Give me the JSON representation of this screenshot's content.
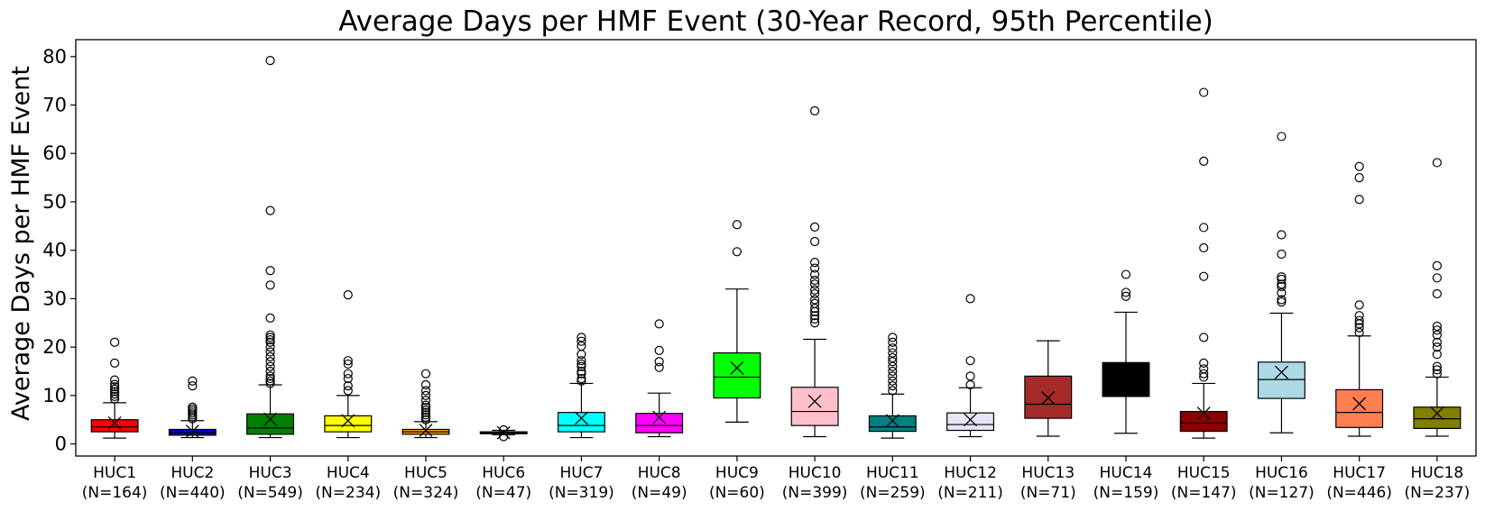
{
  "chart_data": {
    "type": "box",
    "title": "Average Days per HMF Event (30-Year Record, 95th Percentile)",
    "xlabel": "",
    "ylabel": "Average Days per HMF Event",
    "ylim": [
      -2.5,
      83.5
    ],
    "yticks": [
      0,
      10,
      20,
      30,
      40,
      50,
      60,
      70,
      80
    ],
    "grid": false,
    "legend": "none",
    "categories": [
      {
        "name": "HUC1",
        "n_label": "(N=164)",
        "color": "#ff0000",
        "min": 1.2,
        "q1": 2.5,
        "median": 3.5,
        "q3": 5.0,
        "max": 8.5,
        "mean": 4.3,
        "outliers": [
          9.3,
          9.8,
          10.3,
          10.8,
          11.3,
          11.8,
          12.3,
          13.2,
          16.7,
          21.0
        ]
      },
      {
        "name": "HUC2",
        "n_label": "(N=440)",
        "color": "#0000cd",
        "min": 1.3,
        "q1": 1.8,
        "median": 2.3,
        "q3": 3.0,
        "max": 4.8,
        "mean": 2.6,
        "outliers": [
          5.2,
          5.6,
          6.0,
          6.4,
          6.8,
          7.2,
          7.6,
          12.0,
          13.0
        ]
      },
      {
        "name": "HUC3",
        "n_label": "(N=549)",
        "color": "#008000",
        "min": 1.3,
        "q1": 2.0,
        "median": 3.3,
        "q3": 6.2,
        "max": 12.2,
        "mean": 5.1,
        "outliers": [
          12.5,
          13.0,
          13.5,
          14.0,
          15.0,
          16.0,
          17.0,
          18.0,
          19.0,
          20.0,
          21.0,
          21.5,
          22.0,
          22.5,
          26.0,
          32.8,
          35.8,
          48.2,
          79.2
        ]
      },
      {
        "name": "HUC4",
        "n_label": "(N=234)",
        "color": "#ffff00",
        "min": 1.3,
        "q1": 2.5,
        "median": 3.8,
        "q3": 5.8,
        "max": 10.0,
        "mean": 4.8,
        "outliers": [
          11.0,
          12.0,
          13.5,
          14.5,
          16.5,
          17.2,
          30.8
        ]
      },
      {
        "name": "HUC5",
        "n_label": "(N=324)",
        "color": "#ffa500",
        "min": 1.3,
        "q1": 2.0,
        "median": 2.5,
        "q3": 3.0,
        "max": 4.6,
        "mean": 2.8,
        "outliers": [
          5.0,
          5.5,
          6.0,
          6.5,
          7.0,
          7.5,
          8.0,
          9.0,
          10.0,
          11.0,
          12.2,
          14.5
        ]
      },
      {
        "name": "HUC6",
        "n_label": "(N=47)",
        "color": "#a52a2a",
        "min": 1.9,
        "q1": 2.1,
        "median": 2.3,
        "q3": 2.5,
        "max": 2.8,
        "mean": 2.3,
        "outliers": [
          1.5,
          2.9
        ]
      },
      {
        "name": "HUC7",
        "n_label": "(N=319)",
        "color": "#00ffff",
        "min": 1.3,
        "q1": 2.5,
        "median": 3.8,
        "q3": 6.5,
        "max": 12.5,
        "mean": 5.3,
        "outliers": [
          13.0,
          13.5,
          14.5,
          15.0,
          16.0,
          16.5,
          17.2,
          18.5,
          20.2,
          21.2,
          22.0
        ]
      },
      {
        "name": "HUC8",
        "n_label": "(N=49)",
        "color": "#ff00ff",
        "min": 1.5,
        "q1": 2.3,
        "median": 3.8,
        "q3": 6.3,
        "max": 10.5,
        "mean": 5.5,
        "outliers": [
          15.8,
          17.0,
          19.3,
          24.8
        ]
      },
      {
        "name": "HUC9",
        "n_label": "(N=60)",
        "color": "#00ff00",
        "min": 4.5,
        "q1": 9.5,
        "median": 13.8,
        "q3": 18.8,
        "max": 32.0,
        "mean": 15.7,
        "outliers": [
          39.7,
          45.3
        ]
      },
      {
        "name": "HUC10",
        "n_label": "(N=399)",
        "color": "#ffc0cb",
        "min": 1.5,
        "q1": 3.8,
        "median": 6.7,
        "q3": 11.7,
        "max": 21.6,
        "mean": 8.8,
        "outliers": [
          25.0,
          25.8,
          26.5,
          27.3,
          28.0,
          29.0,
          29.8,
          31.0,
          31.8,
          33.0,
          33.8,
          35.0,
          36.3,
          37.5,
          41.8,
          44.8,
          68.8
        ]
      },
      {
        "name": "HUC11",
        "n_label": "(N=259)",
        "color": "#008080",
        "min": 1.2,
        "q1": 2.6,
        "median": 3.5,
        "q3": 5.8,
        "max": 10.3,
        "mean": 4.8,
        "outliers": [
          11.0,
          12.0,
          13.0,
          14.0,
          15.0,
          16.0,
          17.0,
          17.8,
          18.8,
          19.8,
          21.0,
          22.0
        ]
      },
      {
        "name": "HUC12",
        "n_label": "(N=211)",
        "color": "#e6e6fa",
        "min": 1.5,
        "q1": 2.8,
        "median": 4.0,
        "q3": 6.4,
        "max": 11.6,
        "mean": 5.0,
        "outliers": [
          12.2,
          14.0,
          17.2,
          30.0
        ]
      },
      {
        "name": "HUC13",
        "n_label": "(N=71)",
        "color": "#a52a2a",
        "min": 1.6,
        "q1": 5.3,
        "median": 8.2,
        "q3": 14.0,
        "max": 21.3,
        "mean": 9.5,
        "outliers": []
      },
      {
        "name": "HUC14",
        "n_label": "(N=159)",
        "color": "#000000",
        "min": 2.2,
        "q1": 9.8,
        "median": 14.5,
        "q3": 16.8,
        "max": 27.2,
        "mean": 14.2,
        "outliers": [
          30.5,
          31.3,
          35.0
        ]
      },
      {
        "name": "HUC15",
        "n_label": "(N=147)",
        "color": "#8b0000",
        "min": 1.2,
        "q1": 2.6,
        "median": 4.3,
        "q3": 6.7,
        "max": 12.5,
        "mean": 6.3,
        "outliers": [
          13.8,
          14.5,
          15.5,
          16.7,
          22.0,
          34.6,
          40.5,
          44.7,
          58.4,
          72.6
        ]
      },
      {
        "name": "HUC16",
        "n_label": "(N=127)",
        "color": "#add8e6",
        "min": 2.3,
        "q1": 9.4,
        "median": 13.3,
        "q3": 16.9,
        "max": 27.0,
        "mean": 14.8,
        "outliers": [
          29.3,
          29.8,
          31.2,
          32.5,
          33.0,
          34.0,
          34.5,
          39.2,
          43.2,
          63.5
        ]
      },
      {
        "name": "HUC17",
        "n_label": "(N=446)",
        "color": "#ff7f50",
        "min": 1.6,
        "q1": 3.4,
        "median": 6.5,
        "q3": 11.2,
        "max": 22.3,
        "mean": 8.3,
        "outliers": [
          23.0,
          24.0,
          24.8,
          25.5,
          26.5,
          28.7,
          50.5,
          55.0,
          57.3
        ]
      },
      {
        "name": "HUC18",
        "n_label": "(N=237)",
        "color": "#808000",
        "min": 1.6,
        "q1": 3.2,
        "median": 5.2,
        "q3": 7.6,
        "max": 13.8,
        "mean": 6.3,
        "outliers": [
          14.5,
          15.3,
          16.0,
          18.5,
          20.0,
          21.0,
          22.5,
          23.5,
          24.3,
          31.0,
          34.3,
          36.8,
          58.1
        ]
      }
    ]
  }
}
